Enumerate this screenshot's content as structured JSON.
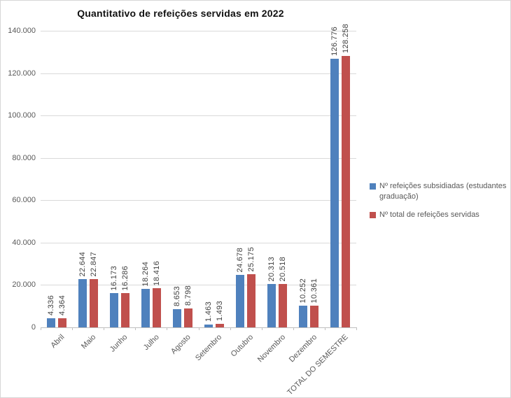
{
  "chart_data": {
    "type": "bar",
    "title": "Quantitativo de refeições servidas em 2022",
    "categories": [
      "Abril",
      "Maio",
      "Junho",
      "Julho",
      "Agosto",
      "Setembro",
      "Outubro",
      "Novembro",
      "Dezembro",
      "TOTAL DO SEMESTRE"
    ],
    "series": [
      {
        "name": "Nº refeições subsidiadas (estudantes graduação)",
        "color": "#4F81BD",
        "values": [
          4336,
          22644,
          16173,
          18264,
          8653,
          1463,
          24678,
          20313,
          10252,
          126776
        ],
        "labels": [
          "4.336",
          "22.644",
          "16.173",
          "18.264",
          "8.653",
          "1.463",
          "24.678",
          "20.313",
          "10.252",
          "126.776"
        ]
      },
      {
        "name": "Nº total de refeições servidas",
        "color": "#C0504D",
        "values": [
          4364,
          22847,
          16286,
          18416,
          8798,
          1493,
          25175,
          20518,
          10361,
          128258
        ],
        "labels": [
          "4.364",
          "22.847",
          "16.286",
          "18.416",
          "8.798",
          "1.493",
          "25.175",
          "20.518",
          "10.361",
          "128.258"
        ]
      }
    ],
    "y_axis": {
      "min": 0,
      "max": 140000,
      "step": 20000,
      "tick_labels": [
        "0",
        "20.000",
        "40.000",
        "60.000",
        "80.000",
        "100.000",
        "120.000",
        "140.000"
      ]
    },
    "legend_position": "right",
    "grid": true,
    "colors": {
      "gridline": "#D9D9D9",
      "axis_line": "#BFBFBF",
      "axis_text": "#595959",
      "value_label_text": "#404040",
      "legend_text": "#595959"
    }
  }
}
